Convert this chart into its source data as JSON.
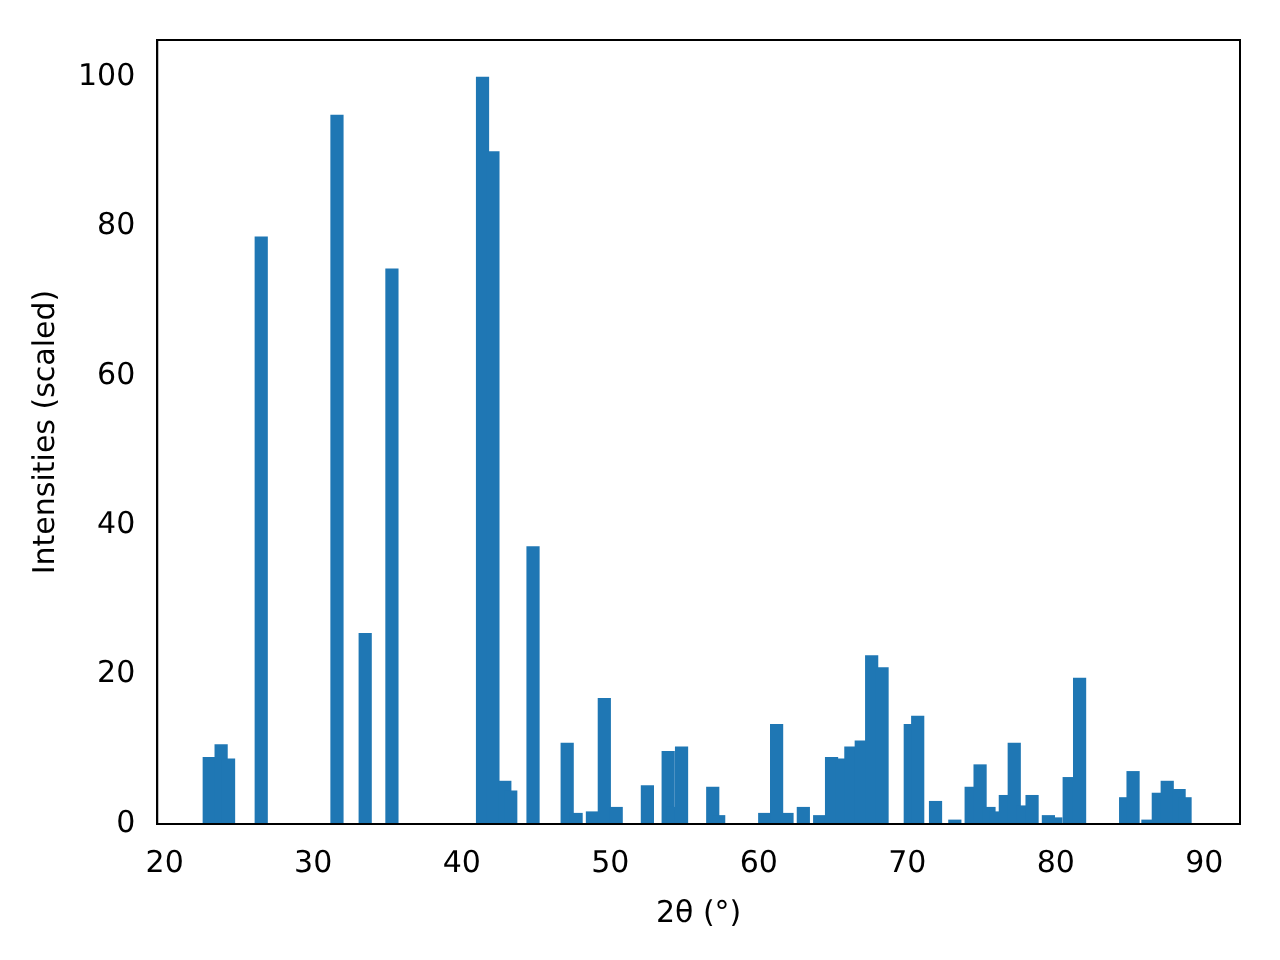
{
  "chart_data": {
    "type": "bar",
    "xlabel": "2θ (°)",
    "ylabel": "Intensities (scaled)",
    "color": "#1f77b4",
    "x": [
      23.0,
      23.8,
      24.3,
      26.5,
      31.6,
      33.5,
      35.3,
      41.4,
      42.1,
      42.9,
      43.3,
      44.8,
      47.1,
      47.7,
      48.8,
      49.6,
      50.4,
      52.5,
      53.9,
      54.2,
      54.8,
      56.9,
      57.3,
      60.4,
      61.2,
      61.9,
      63.0,
      64.1,
      64.9,
      65.6,
      66.2,
      66.9,
      67.6,
      68.3,
      70.2,
      70.7,
      71.9,
      73.2,
      74.3,
      74.9,
      75.5,
      76.0,
      76.6,
      77.2,
      77.8,
      78.4,
      79.5,
      80.0,
      80.9,
      81.6,
      84.7,
      85.2,
      86.2,
      86.9,
      87.5,
      88.3,
      88.7
    ],
    "values": [
      8.9,
      10.6,
      8.7,
      78.6,
      94.9,
      25.5,
      74.3,
      100,
      90.0,
      5.7,
      4.4,
      37.1,
      10.8,
      1.4,
      1.6,
      16.8,
      2.2,
      5.1,
      9.7,
      2.2,
      10.3,
      4.9,
      1.1,
      1.4,
      13.3,
      1.4,
      2.2,
      1.1,
      8.9,
      8.7,
      10.3,
      11.1,
      22.5,
      20.9,
      13.3,
      14.4,
      3.0,
      0.5,
      4.9,
      7.9,
      2.2,
      1.6,
      3.8,
      10.8,
      2.4,
      3.8,
      1.1,
      0.8,
      6.2,
      19.5,
      3.5,
      7.0,
      0.5,
      4.1,
      5.7,
      4.6,
      3.5
    ],
    "xlim": [
      19.5,
      92.4
    ],
    "ylim": [
      0,
      105
    ],
    "xticks": [
      20,
      30,
      40,
      50,
      60,
      70,
      80,
      90
    ],
    "yticks": [
      0,
      20,
      40,
      60,
      80,
      100
    ]
  }
}
